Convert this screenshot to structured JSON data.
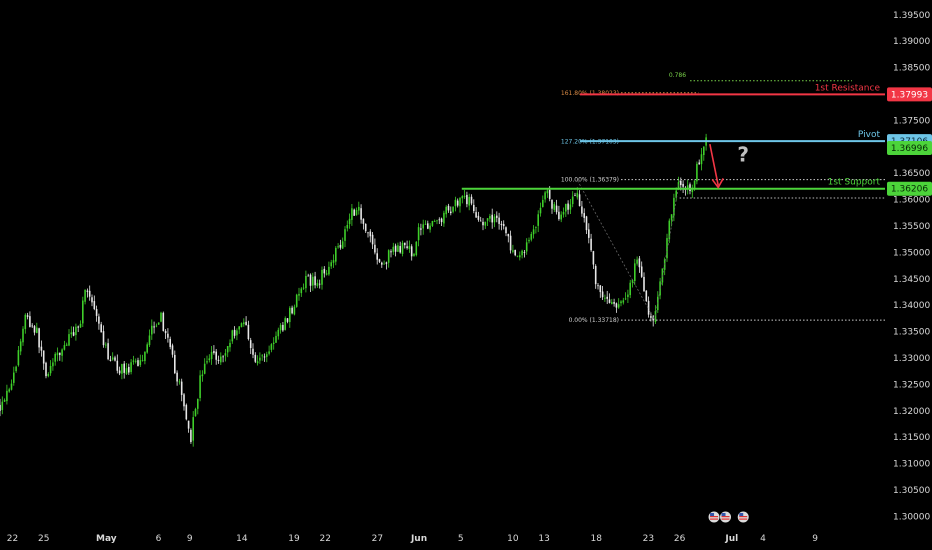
{
  "chart_data": {
    "type": "candlestick",
    "y_range": [
      1.2978,
      1.3978
    ],
    "y_ticks": [
      "1.39500",
      "1.39000",
      "1.38500",
      "1.38000",
      "1.37500",
      "1.37000",
      "1.36500",
      "1.36000",
      "1.35500",
      "1.35000",
      "1.34500",
      "1.34000",
      "1.33500",
      "1.33000",
      "1.32500",
      "1.32000",
      "1.31500",
      "1.31000",
      "1.30500",
      "1.30000"
    ],
    "x_ticks": [
      {
        "label": "22",
        "x": 0
      },
      {
        "label": "25",
        "x": 3
      },
      {
        "label": "May",
        "x": 9
      },
      {
        "label": "6",
        "x": 14
      },
      {
        "label": "9",
        "x": 17
      },
      {
        "label": "14",
        "x": 22
      },
      {
        "label": "19",
        "x": 27
      },
      {
        "label": "22",
        "x": 30
      },
      {
        "label": "27",
        "x": 35
      },
      {
        "label": "Jun",
        "x": 39
      },
      {
        "label": "5",
        "x": 43
      },
      {
        "label": "10",
        "x": 48
      },
      {
        "label": "13",
        "x": 51
      },
      {
        "label": "18",
        "x": 56
      },
      {
        "label": "23",
        "x": 61
      },
      {
        "label": "26",
        "x": 64
      },
      {
        "label": "Jul",
        "x": 69
      },
      {
        "label": "4",
        "x": 72
      },
      {
        "label": "9",
        "x": 77
      }
    ],
    "x_range": [
      -1.2,
      83.7
    ],
    "price_path": [
      [
        -1.2,
        1.321
      ],
      [
        0.2,
        1.327
      ],
      [
        1.2,
        1.338
      ],
      [
        2.3,
        1.335
      ],
      [
        3.2,
        1.327
      ],
      [
        4.2,
        1.33
      ],
      [
        5.2,
        1.333
      ],
      [
        6.5,
        1.337
      ],
      [
        7.0,
        1.344
      ],
      [
        7.8,
        1.339
      ],
      [
        8.8,
        1.332
      ],
      [
        10.0,
        1.328
      ],
      [
        11.3,
        1.328
      ],
      [
        12.5,
        1.33
      ],
      [
        13.3,
        1.336
      ],
      [
        14.2,
        1.338
      ],
      [
        15.3,
        1.33
      ],
      [
        16.2,
        1.323
      ],
      [
        17.1,
        1.315
      ],
      [
        18.0,
        1.326
      ],
      [
        19.0,
        1.331
      ],
      [
        20.2,
        1.33
      ],
      [
        21.2,
        1.335
      ],
      [
        22.3,
        1.337
      ],
      [
        23.3,
        1.329
      ],
      [
        24.4,
        1.331
      ],
      [
        25.3,
        1.334
      ],
      [
        26.2,
        1.337
      ],
      [
        27.2,
        1.341
      ],
      [
        28.3,
        1.345
      ],
      [
        29.2,
        1.344
      ],
      [
        30.4,
        1.348
      ],
      [
        31.5,
        1.352
      ],
      [
        32.5,
        1.358
      ],
      [
        33.2,
        1.358
      ],
      [
        34.3,
        1.353
      ],
      [
        35.3,
        1.347
      ],
      [
        36.3,
        1.35
      ],
      [
        37.3,
        1.351
      ],
      [
        38.4,
        1.35
      ],
      [
        39.3,
        1.356
      ],
      [
        40.3,
        1.355
      ],
      [
        41.3,
        1.357
      ],
      [
        42.3,
        1.359
      ],
      [
        43.3,
        1.361
      ],
      [
        44.3,
        1.358
      ],
      [
        45.3,
        1.355
      ],
      [
        46.4,
        1.357
      ],
      [
        47.3,
        1.354
      ],
      [
        48.3,
        1.348
      ],
      [
        49.2,
        1.351
      ],
      [
        50.3,
        1.356
      ],
      [
        51.2,
        1.362
      ],
      [
        52.2,
        1.357
      ],
      [
        53.3,
        1.359
      ],
      [
        54.2,
        1.361
      ],
      [
        55.1,
        1.355
      ],
      [
        56.1,
        1.343
      ],
      [
        57.1,
        1.341
      ],
      [
        58.1,
        1.339
      ],
      [
        59.0,
        1.342
      ],
      [
        59.9,
        1.349
      ],
      [
        60.6,
        1.342
      ],
      [
        61.2,
        1.338
      ],
      [
        61.6,
        1.3372
      ],
      [
        62.6,
        1.35
      ],
      [
        63.2,
        1.358
      ],
      [
        63.9,
        1.364
      ],
      [
        64.5,
        1.361
      ],
      [
        65.3,
        1.363
      ],
      [
        66.2,
        1.37
      ],
      [
        66.7,
        1.3735
      ]
    ],
    "lines": [
      {
        "name": "1st Resistance",
        "label": "1st Resistance",
        "y": 1.37993,
        "color": "#f23645",
        "badge": "1.37993",
        "x_start": 57.0
      },
      {
        "name": "Pivot",
        "label": "Pivot",
        "y": 1.37106,
        "color": "#6ec6e8",
        "badge": "1.37106",
        "x_start": 57.0
      },
      {
        "name": "1st Support",
        "label": "1st Support",
        "y": 1.36206,
        "color": "#4cd43a",
        "badge": "1.36206",
        "x_start": 43.1
      }
    ],
    "current_price": {
      "y": 1.36996,
      "badge": "1.36996",
      "color": "#4cd43a"
    },
    "fibonacci": [
      {
        "label": "161.80% (1.38023)",
        "y": 1.38023,
        "x_start": 55.5,
        "color": "#d98a45"
      },
      {
        "label": "127.20% (1.37103)",
        "y": 1.37103,
        "x_start": 55.5,
        "color": "#6ec6e8"
      },
      {
        "label": "100.00% (1.36379)",
        "y": 1.36379,
        "x_start": 55.5,
        "color": "#cfcfcf"
      },
      {
        "label": "0.00% (1.33718)",
        "y": 1.33718,
        "x_start": 55.5,
        "color": "#cfcfcf"
      }
    ],
    "extra_fib": {
      "label": "0.786",
      "y": 1.3825,
      "x_start": 65.0,
      "color": "#7ad44a"
    },
    "support_dotted": {
      "y": 1.3603,
      "x_start": 64.0
    },
    "resistance_zone_left": {
      "x_start": 43.1,
      "x_end": 64.6,
      "y": 1.36206
    },
    "arrow": {
      "from": [
        66.9,
        1.3705
      ],
      "to": [
        67.7,
        1.3623
      ],
      "color": "#f23645"
    },
    "question_mark": {
      "text": "?",
      "x": 70.1,
      "y": 1.3672
    },
    "event_icons": [
      {
        "x": 67.3
      },
      {
        "x": 68.4
      },
      {
        "x": 70.1
      }
    ]
  }
}
